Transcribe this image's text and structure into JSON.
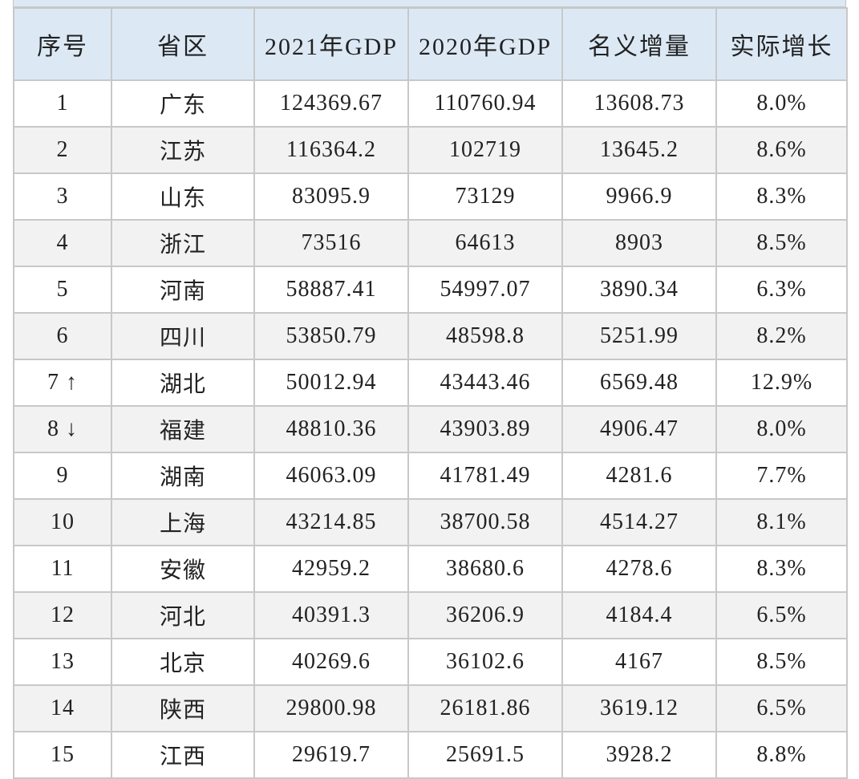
{
  "headers": [
    "序号",
    "省区",
    "2021年GDP",
    "2020年GDP",
    "名义增量",
    "实际增长"
  ],
  "rows": [
    {
      "rank": "1",
      "arrow": "",
      "province": "广东",
      "gdp2021": "124369.67",
      "gdp2020": "110760.94",
      "increment": "13608.73",
      "growth": "8.0%"
    },
    {
      "rank": "2",
      "arrow": "",
      "province": "江苏",
      "gdp2021": "116364.2",
      "gdp2020": "102719",
      "increment": "13645.2",
      "growth": "8.6%"
    },
    {
      "rank": "3",
      "arrow": "",
      "province": "山东",
      "gdp2021": "83095.9",
      "gdp2020": "73129",
      "increment": "9966.9",
      "growth": "8.3%"
    },
    {
      "rank": "4",
      "arrow": "",
      "province": "浙江",
      "gdp2021": "73516",
      "gdp2020": "64613",
      "increment": "8903",
      "growth": "8.5%"
    },
    {
      "rank": "5",
      "arrow": "",
      "province": "河南",
      "gdp2021": "58887.41",
      "gdp2020": "54997.07",
      "increment": "3890.34",
      "growth": "6.3%"
    },
    {
      "rank": "6",
      "arrow": "",
      "province": "四川",
      "gdp2021": "53850.79",
      "gdp2020": "48598.8",
      "increment": "5251.99",
      "growth": "8.2%"
    },
    {
      "rank": "7",
      "arrow": "↑",
      "province": "湖北",
      "gdp2021": "50012.94",
      "gdp2020": "43443.46",
      "increment": "6569.48",
      "growth": "12.9%"
    },
    {
      "rank": "8",
      "arrow": "↓",
      "province": "福建",
      "gdp2021": "48810.36",
      "gdp2020": "43903.89",
      "increment": "4906.47",
      "growth": "8.0%"
    },
    {
      "rank": "9",
      "arrow": "",
      "province": "湖南",
      "gdp2021": "46063.09",
      "gdp2020": "41781.49",
      "increment": "4281.6",
      "growth": "7.7%"
    },
    {
      "rank": "10",
      "arrow": "",
      "province": "上海",
      "gdp2021": "43214.85",
      "gdp2020": "38700.58",
      "increment": "4514.27",
      "growth": "8.1%"
    },
    {
      "rank": "11",
      "arrow": "",
      "province": "安徽",
      "gdp2021": "42959.2",
      "gdp2020": "38680.6",
      "increment": "4278.6",
      "growth": "8.3%"
    },
    {
      "rank": "12",
      "arrow": "",
      "province": "河北",
      "gdp2021": "40391.3",
      "gdp2020": "36206.9",
      "increment": "4184.4",
      "growth": "6.5%"
    },
    {
      "rank": "13",
      "arrow": "",
      "province": "北京",
      "gdp2021": "40269.6",
      "gdp2020": "36102.6",
      "increment": "4167",
      "growth": "8.5%"
    },
    {
      "rank": "14",
      "arrow": "",
      "province": "陕西",
      "gdp2021": "29800.98",
      "gdp2020": "26181.86",
      "increment": "3619.12",
      "growth": "6.5%"
    },
    {
      "rank": "15",
      "arrow": "",
      "province": "江西",
      "gdp2021": "29619.7",
      "gdp2020": "25691.5",
      "increment": "3928.2",
      "growth": "8.8%"
    }
  ],
  "colors": {
    "header_bg": "#dce9f5",
    "alt_row_bg": "#f2f2f2",
    "border": "#c8c8c8"
  }
}
